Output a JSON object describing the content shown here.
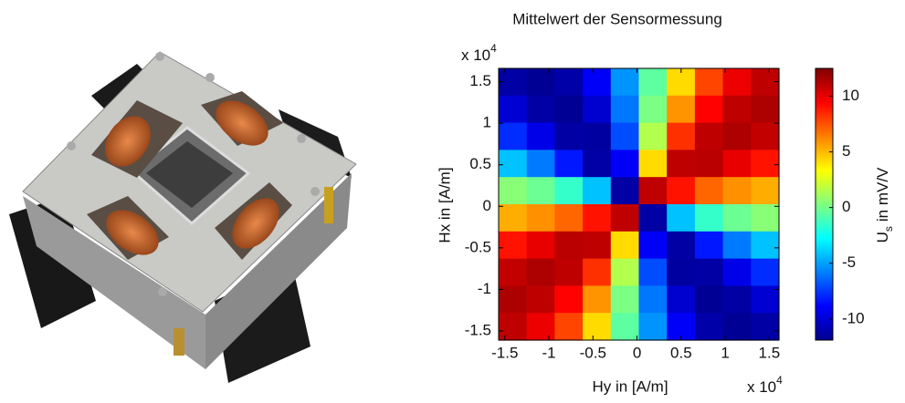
{
  "chart_data": {
    "type": "heatmap",
    "title": "Mittelwert der Sensormessung",
    "x_label": "Hy in [A/m]",
    "y_label": "Hx in [A/m]",
    "x_multiplier": {
      "base": "x 10",
      "exponent": "4"
    },
    "y_multiplier": {
      "base": "x 10",
      "exponent": "4"
    },
    "xlim": [
      -1.57,
      1.61
    ],
    "ylim": [
      -1.61,
      1.66
    ],
    "xticks": [
      -1.5,
      -1,
      -0.5,
      0,
      0.5,
      1,
      1.5
    ],
    "yticks": [
      -1.5,
      -1,
      -0.5,
      0,
      0.5,
      1,
      1.5
    ],
    "z": [
      [
        -11,
        -11.4,
        -10.9,
        -9.0,
        -5.3,
        -0.5,
        4.2,
        7.8,
        9.9,
        11
      ],
      [
        -9.9,
        -11,
        -11.4,
        -10.0,
        -6.0,
        0.2,
        5.9,
        9.4,
        11,
        11.4
      ],
      [
        -7.8,
        -9.4,
        -11,
        -11.1,
        -7.0,
        1.5,
        8.3,
        11,
        11.4,
        10.9
      ],
      [
        -4.2,
        -5.9,
        -8.3,
        -11,
        -9.0,
        4.2,
        11,
        11.1,
        10.0,
        9.0
      ],
      [
        0.5,
        -0.2,
        -1.5,
        -4.2,
        -11,
        11,
        9.0,
        7.0,
        6.0,
        5.3
      ],
      [
        5.3,
        6.0,
        7.0,
        9.0,
        11,
        -11,
        -4.2,
        -1.5,
        -0.2,
        0.5
      ],
      [
        9.0,
        10.0,
        11.1,
        11,
        4.2,
        -9.0,
        -11,
        -8.3,
        -5.9,
        -4.2
      ],
      [
        10.9,
        11.4,
        11,
        8.3,
        1.5,
        -7.0,
        -11.1,
        -11,
        -9.4,
        -7.8
      ],
      [
        11.4,
        11,
        9.4,
        5.9,
        0.2,
        -6.0,
        -10.0,
        -11.4,
        -11,
        -9.9
      ],
      [
        11,
        9.9,
        7.8,
        4.2,
        -0.5,
        -5.3,
        -9.0,
        -10.9,
        -11.4,
        -11
      ]
    ],
    "colorbar": {
      "label": {
        "main": "U",
        "subscript": "s",
        "rest": "in mV/V"
      },
      "clim": [
        -11.9,
        12.5
      ],
      "ticks": [
        -10,
        -5,
        0,
        5,
        10
      ],
      "colormap": "jet"
    }
  }
}
